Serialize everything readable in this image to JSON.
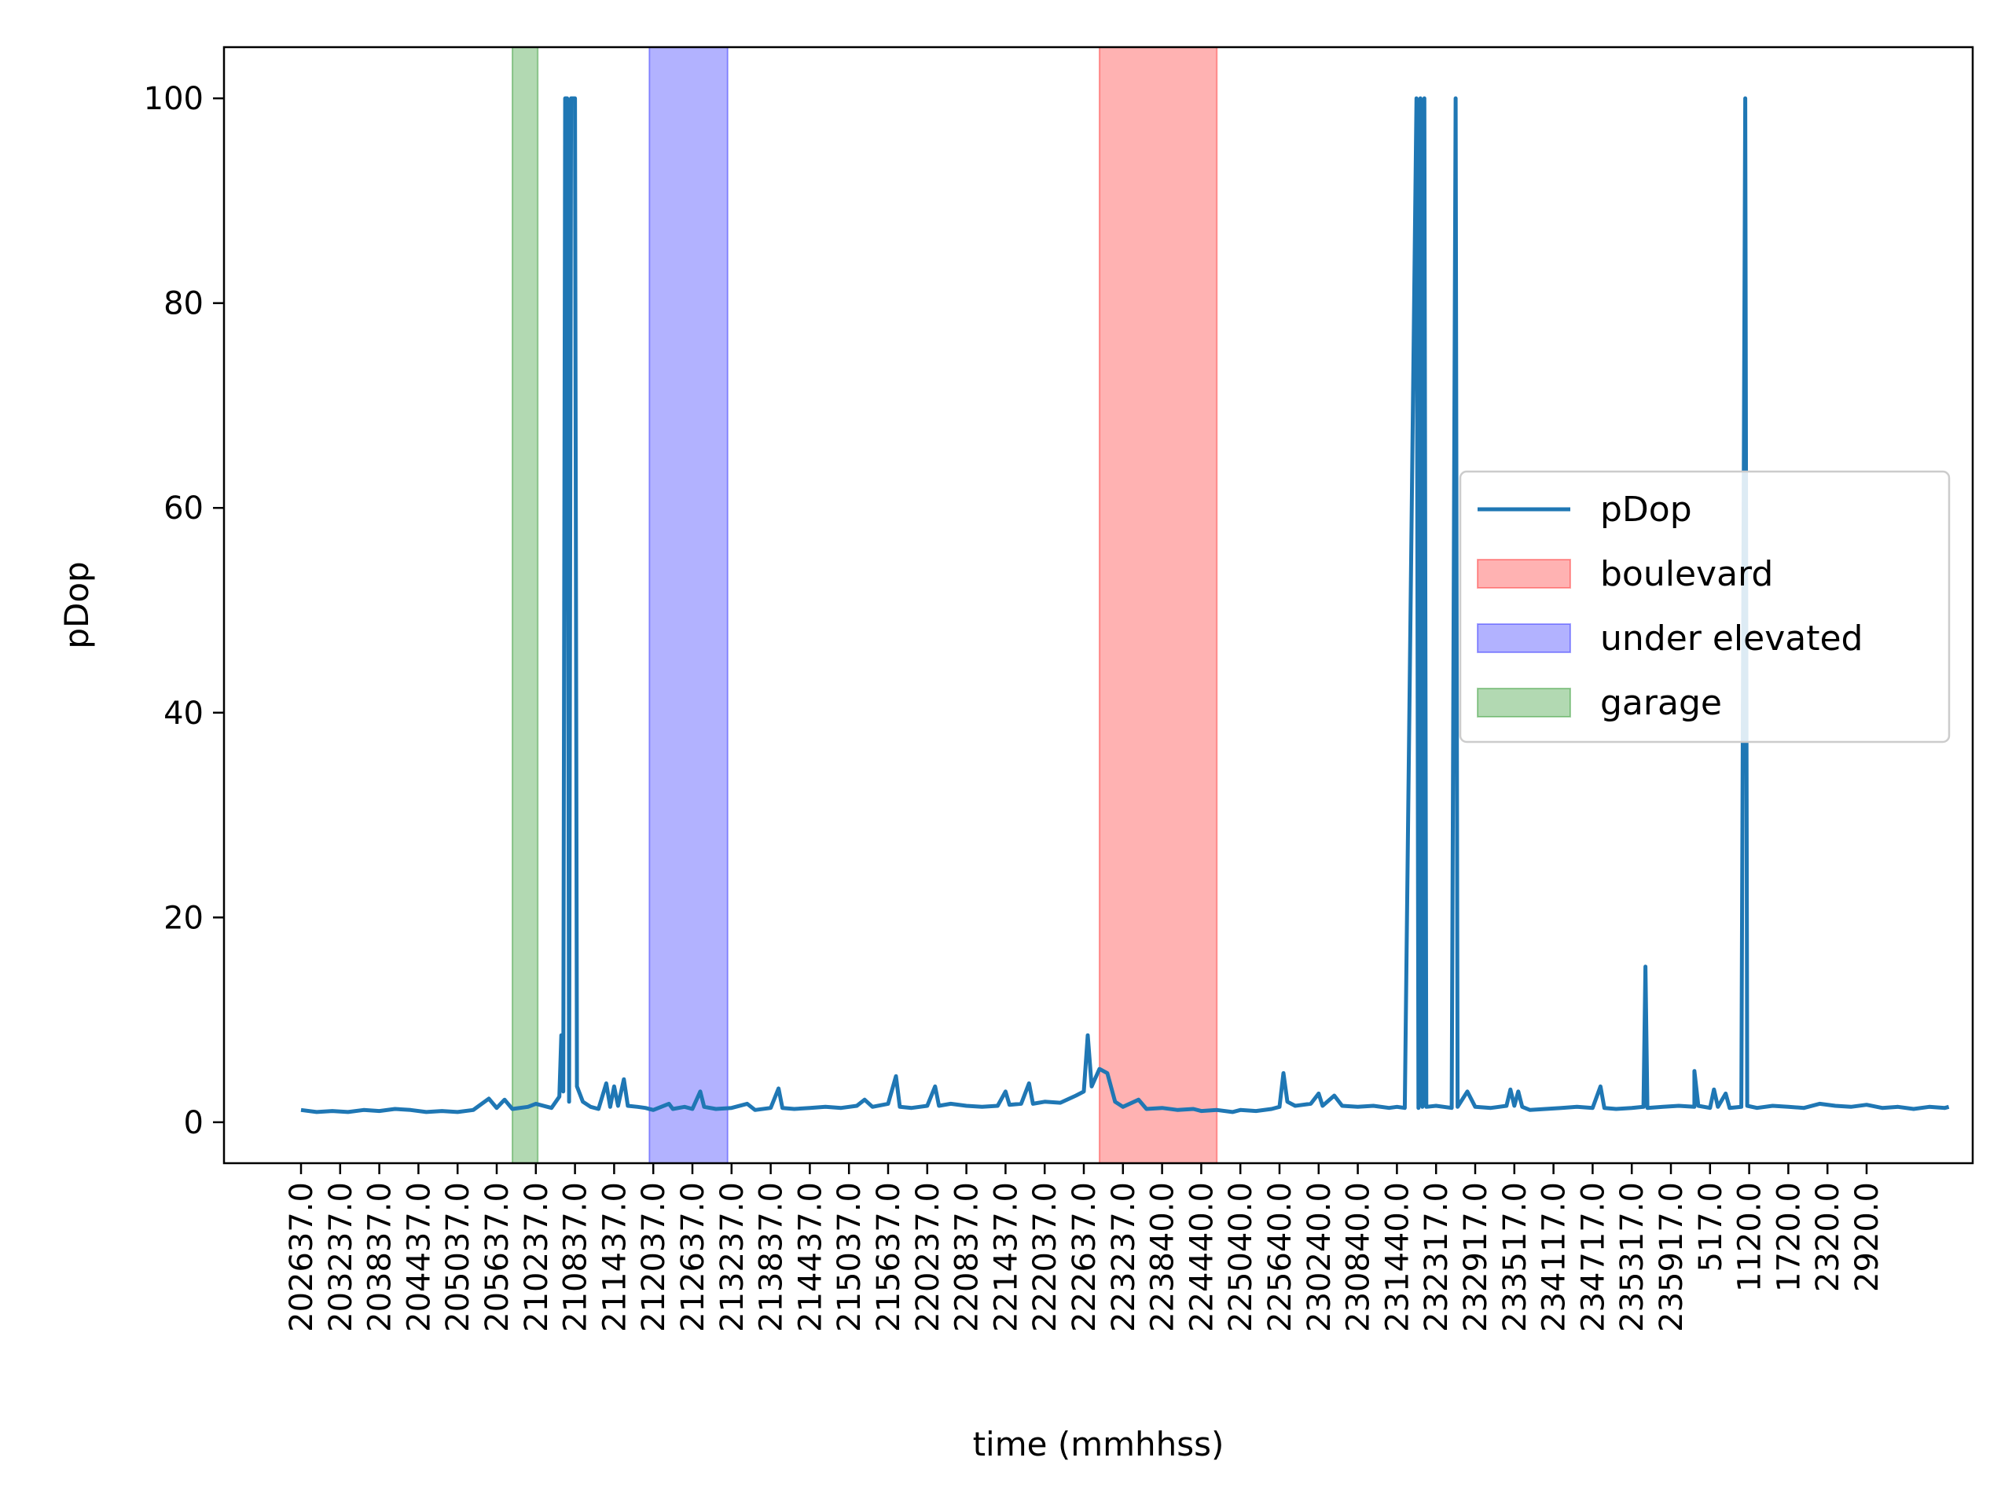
{
  "chart_data": {
    "type": "line",
    "xlabel": "time (mmhhss)",
    "ylabel": "pDop",
    "ylim": [
      -4,
      105
    ],
    "yticks": [
      0,
      20,
      40,
      60,
      80,
      100
    ],
    "grid": false,
    "legend_placement": "center-right",
    "x_tick_labels": [
      "202637.0",
      "203237.0",
      "203837.0",
      "204437.0",
      "205037.0",
      "205637.0",
      "210237.0",
      "210837.0",
      "211437.0",
      "212037.0",
      "212637.0",
      "213237.0",
      "213837.0",
      "214437.0",
      "215037.0",
      "215637.0",
      "220237.0",
      "220837.0",
      "221437.0",
      "222037.0",
      "222637.0",
      "223237.0",
      "223840.0",
      "224440.0",
      "225040.0",
      "225640.0",
      "230240.0",
      "230840.0",
      "231440.0",
      "232317.0",
      "232917.0",
      "233517.0",
      "234117.0",
      "234717.0",
      "235317.0",
      "235917.0",
      "517.0",
      "1120.0",
      "1720.0",
      "2320.0",
      "2920.0"
    ],
    "x_index_range": [
      -2.0,
      42.2
    ],
    "series": [
      {
        "name": "pDop",
        "color": "#1f77b4",
        "points": [
          [
            0.0,
            1.2
          ],
          [
            0.4,
            1.0
          ],
          [
            0.8,
            1.1
          ],
          [
            1.2,
            1.0
          ],
          [
            1.6,
            1.2
          ],
          [
            2.0,
            1.1
          ],
          [
            2.4,
            1.3
          ],
          [
            2.8,
            1.2
          ],
          [
            3.2,
            1.0
          ],
          [
            3.6,
            1.1
          ],
          [
            4.0,
            1.0
          ],
          [
            4.4,
            1.2
          ],
          [
            4.8,
            2.3
          ],
          [
            5.0,
            1.4
          ],
          [
            5.2,
            2.2
          ],
          [
            5.4,
            1.3
          ],
          [
            5.8,
            1.5
          ],
          [
            6.0,
            1.8
          ],
          [
            6.4,
            1.4
          ],
          [
            6.6,
            2.5
          ],
          [
            6.65,
            8.5
          ],
          [
            6.7,
            3.0
          ],
          [
            6.75,
            100
          ],
          [
            6.8,
            100
          ],
          [
            6.85,
            2.0
          ],
          [
            6.9,
            100
          ],
          [
            7.0,
            100
          ],
          [
            7.05,
            3.5
          ],
          [
            7.2,
            2.0
          ],
          [
            7.4,
            1.5
          ],
          [
            7.6,
            1.3
          ],
          [
            7.8,
            3.8
          ],
          [
            7.9,
            1.5
          ],
          [
            8.0,
            3.5
          ],
          [
            8.1,
            1.6
          ],
          [
            8.25,
            4.2
          ],
          [
            8.35,
            1.6
          ],
          [
            8.6,
            1.5
          ],
          [
            8.8,
            1.4
          ],
          [
            9.0,
            1.2
          ],
          [
            9.4,
            1.8
          ],
          [
            9.5,
            1.3
          ],
          [
            9.8,
            1.5
          ],
          [
            10.0,
            1.3
          ],
          [
            10.2,
            3.0
          ],
          [
            10.3,
            1.5
          ],
          [
            10.6,
            1.3
          ],
          [
            11.0,
            1.4
          ],
          [
            11.4,
            1.8
          ],
          [
            11.6,
            1.2
          ],
          [
            12.0,
            1.4
          ],
          [
            12.2,
            3.3
          ],
          [
            12.3,
            1.4
          ],
          [
            12.6,
            1.3
          ],
          [
            13.0,
            1.4
          ],
          [
            13.4,
            1.5
          ],
          [
            13.8,
            1.4
          ],
          [
            14.2,
            1.6
          ],
          [
            14.4,
            2.2
          ],
          [
            14.6,
            1.5
          ],
          [
            15.0,
            1.8
          ],
          [
            15.2,
            4.5
          ],
          [
            15.3,
            1.5
          ],
          [
            15.6,
            1.4
          ],
          [
            16.0,
            1.6
          ],
          [
            16.2,
            3.5
          ],
          [
            16.3,
            1.6
          ],
          [
            16.6,
            1.8
          ],
          [
            17.0,
            1.6
          ],
          [
            17.4,
            1.5
          ],
          [
            17.8,
            1.6
          ],
          [
            18.0,
            3.0
          ],
          [
            18.1,
            1.7
          ],
          [
            18.4,
            1.8
          ],
          [
            18.6,
            3.8
          ],
          [
            18.7,
            1.8
          ],
          [
            19.0,
            2.0
          ],
          [
            19.4,
            1.9
          ],
          [
            19.8,
            2.6
          ],
          [
            20.0,
            3.0
          ],
          [
            20.1,
            8.5
          ],
          [
            20.2,
            3.5
          ],
          [
            20.4,
            5.2
          ],
          [
            20.6,
            4.8
          ],
          [
            20.8,
            2.0
          ],
          [
            21.0,
            1.5
          ],
          [
            21.4,
            2.2
          ],
          [
            21.6,
            1.3
          ],
          [
            22.0,
            1.4
          ],
          [
            22.4,
            1.2
          ],
          [
            22.8,
            1.3
          ],
          [
            23.0,
            1.1
          ],
          [
            23.4,
            1.2
          ],
          [
            23.8,
            1.0
          ],
          [
            24.0,
            1.2
          ],
          [
            24.4,
            1.1
          ],
          [
            24.8,
            1.3
          ],
          [
            25.0,
            1.5
          ],
          [
            25.1,
            4.8
          ],
          [
            25.2,
            2.0
          ],
          [
            25.4,
            1.6
          ],
          [
            25.8,
            1.8
          ],
          [
            26.0,
            2.8
          ],
          [
            26.1,
            1.6
          ],
          [
            26.4,
            2.6
          ],
          [
            26.6,
            1.6
          ],
          [
            27.0,
            1.5
          ],
          [
            27.4,
            1.6
          ],
          [
            27.8,
            1.4
          ],
          [
            28.0,
            1.5
          ],
          [
            28.2,
            1.4
          ],
          [
            28.5,
            100
          ],
          [
            28.55,
            1.4
          ],
          [
            28.6,
            100
          ],
          [
            28.65,
            1.5
          ],
          [
            28.7,
            100
          ],
          [
            28.75,
            1.5
          ],
          [
            29.0,
            1.6
          ],
          [
            29.4,
            1.4
          ],
          [
            29.5,
            100
          ],
          [
            29.55,
            1.5
          ],
          [
            29.8,
            3.0
          ],
          [
            30.0,
            1.5
          ],
          [
            30.4,
            1.4
          ],
          [
            30.8,
            1.6
          ],
          [
            30.9,
            3.2
          ],
          [
            31.0,
            1.6
          ],
          [
            31.1,
            3.0
          ],
          [
            31.2,
            1.5
          ],
          [
            31.4,
            1.2
          ],
          [
            31.8,
            1.3
          ],
          [
            32.2,
            1.4
          ],
          [
            32.6,
            1.5
          ],
          [
            33.0,
            1.4
          ],
          [
            33.2,
            3.5
          ],
          [
            33.3,
            1.4
          ],
          [
            33.6,
            1.3
          ],
          [
            34.0,
            1.4
          ],
          [
            34.3,
            1.5
          ],
          [
            34.35,
            15.2
          ],
          [
            34.4,
            1.4
          ],
          [
            34.8,
            1.5
          ],
          [
            35.2,
            1.6
          ],
          [
            35.6,
            1.5
          ],
          [
            35.6,
            5.0
          ],
          [
            35.7,
            1.6
          ],
          [
            36.0,
            1.4
          ],
          [
            36.1,
            3.2
          ],
          [
            36.2,
            1.5
          ],
          [
            36.4,
            2.8
          ],
          [
            36.5,
            1.4
          ],
          [
            36.8,
            1.5
          ],
          [
            36.9,
            100
          ],
          [
            36.95,
            1.6
          ],
          [
            37.2,
            1.4
          ],
          [
            37.6,
            1.6
          ],
          [
            38.0,
            1.5
          ],
          [
            38.4,
            1.4
          ],
          [
            38.8,
            1.8
          ],
          [
            39.2,
            1.6
          ],
          [
            39.6,
            1.5
          ],
          [
            40.0,
            1.7
          ],
          [
            40.4,
            1.4
          ],
          [
            40.8,
            1.5
          ],
          [
            41.2,
            1.3
          ],
          [
            41.6,
            1.5
          ],
          [
            42.0,
            1.4
          ],
          [
            42.1,
            1.5
          ]
        ]
      }
    ],
    "regions": [
      {
        "name": "boulevard",
        "color": "#ff0000",
        "x_start": 22.0,
        "x_end": 22.4,
        "x_band": [
          20.4,
          23.4
        ]
      },
      {
        "name": "under elevated",
        "color": "#0000ff",
        "x_band": [
          8.9,
          10.9
        ]
      },
      {
        "name": "garage",
        "color": "#008000",
        "x_band": [
          5.4,
          6.05
        ]
      }
    ]
  }
}
